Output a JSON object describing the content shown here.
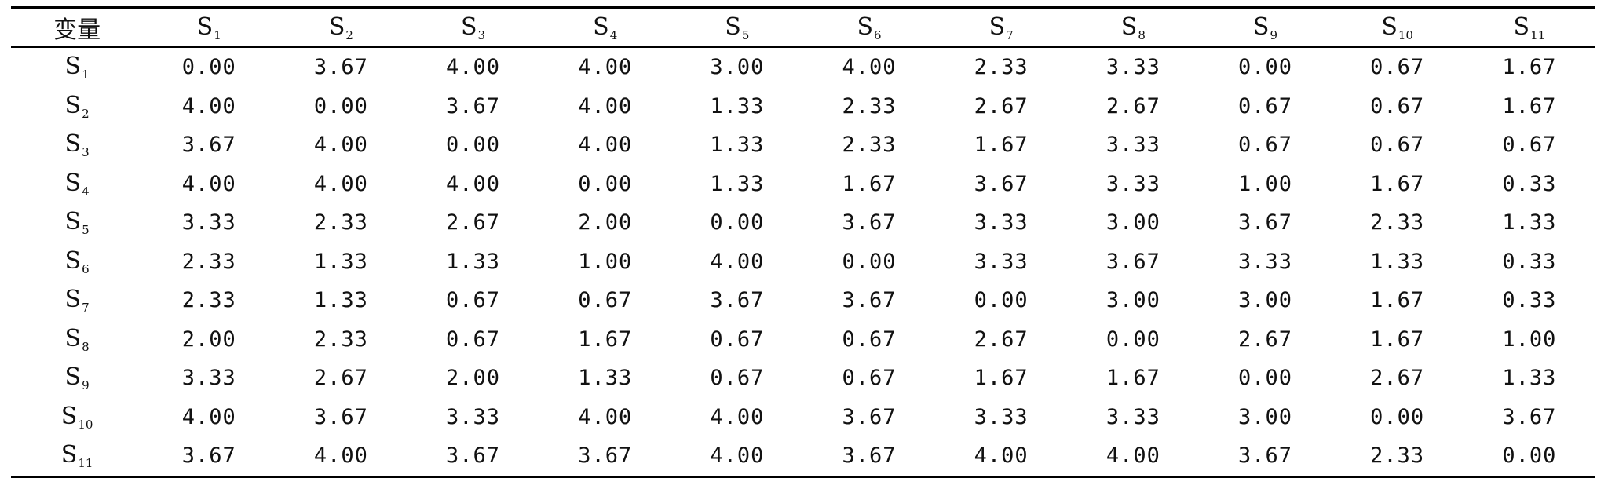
{
  "table": {
    "corner_label": "变量",
    "columns": [
      {
        "base": "S",
        "sub": "1"
      },
      {
        "base": "S",
        "sub": "2"
      },
      {
        "base": "S",
        "sub": "3"
      },
      {
        "base": "S",
        "sub": "4"
      },
      {
        "base": "S",
        "sub": "5"
      },
      {
        "base": "S",
        "sub": "6"
      },
      {
        "base": "S",
        "sub": "7"
      },
      {
        "base": "S",
        "sub": "8"
      },
      {
        "base": "S",
        "sub": "9"
      },
      {
        "base": "S",
        "sub": "10"
      },
      {
        "base": "S",
        "sub": "11"
      }
    ],
    "rows": [
      {
        "label": {
          "base": "S",
          "sub": "1"
        },
        "values": [
          "0.00",
          "3.67",
          "4.00",
          "4.00",
          "3.00",
          "4.00",
          "2.33",
          "3.33",
          "0.00",
          "0.67",
          "1.67"
        ]
      },
      {
        "label": {
          "base": "S",
          "sub": "2"
        },
        "values": [
          "4.00",
          "0.00",
          "3.67",
          "4.00",
          "1.33",
          "2.33",
          "2.67",
          "2.67",
          "0.67",
          "0.67",
          "1.67"
        ]
      },
      {
        "label": {
          "base": "S",
          "sub": "3"
        },
        "values": [
          "3.67",
          "4.00",
          "0.00",
          "4.00",
          "1.33",
          "2.33",
          "1.67",
          "3.33",
          "0.67",
          "0.67",
          "0.67"
        ]
      },
      {
        "label": {
          "base": "S",
          "sub": "4"
        },
        "values": [
          "4.00",
          "4.00",
          "4.00",
          "0.00",
          "1.33",
          "1.67",
          "3.67",
          "3.33",
          "1.00",
          "1.67",
          "0.33"
        ]
      },
      {
        "label": {
          "base": "S",
          "sub": "5"
        },
        "values": [
          "3.33",
          "2.33",
          "2.67",
          "2.00",
          "0.00",
          "3.67",
          "3.33",
          "3.00",
          "3.67",
          "2.33",
          "1.33"
        ]
      },
      {
        "label": {
          "base": "S",
          "sub": "6"
        },
        "values": [
          "2.33",
          "1.33",
          "1.33",
          "1.00",
          "4.00",
          "0.00",
          "3.33",
          "3.67",
          "3.33",
          "1.33",
          "0.33"
        ]
      },
      {
        "label": {
          "base": "S",
          "sub": "7"
        },
        "values": [
          "2.33",
          "1.33",
          "0.67",
          "0.67",
          "3.67",
          "3.67",
          "0.00",
          "3.00",
          "3.00",
          "1.67",
          "0.33"
        ]
      },
      {
        "label": {
          "base": "S",
          "sub": "8"
        },
        "values": [
          "2.00",
          "2.33",
          "0.67",
          "1.67",
          "0.67",
          "0.67",
          "2.67",
          "0.00",
          "2.67",
          "1.67",
          "1.00"
        ]
      },
      {
        "label": {
          "base": "S",
          "sub": "9"
        },
        "values": [
          "3.33",
          "2.67",
          "2.00",
          "1.33",
          "0.67",
          "0.67",
          "1.67",
          "1.67",
          "0.00",
          "2.67",
          "1.33"
        ]
      },
      {
        "label": {
          "base": "S",
          "sub": "10"
        },
        "values": [
          "4.00",
          "3.67",
          "3.33",
          "4.00",
          "4.00",
          "3.67",
          "3.33",
          "3.33",
          "3.00",
          "0.00",
          "3.67"
        ]
      },
      {
        "label": {
          "base": "S",
          "sub": "11"
        },
        "values": [
          "3.67",
          "4.00",
          "3.67",
          "3.67",
          "4.00",
          "3.67",
          "4.00",
          "4.00",
          "3.67",
          "2.33",
          "0.00"
        ]
      }
    ]
  }
}
